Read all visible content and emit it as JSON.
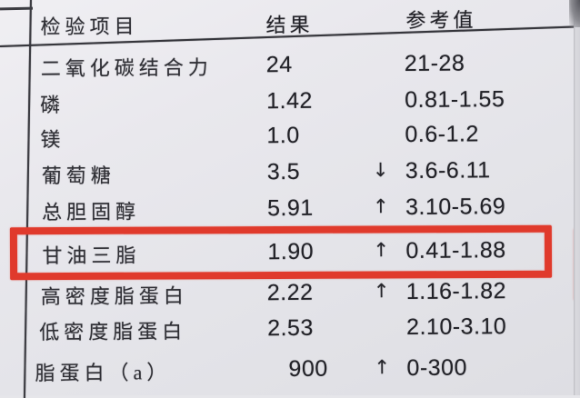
{
  "report": {
    "header": {
      "item": "检验项目",
      "result": "结果",
      "reference": "参考值"
    },
    "rows": [
      {
        "item": "二氧化碳结合力",
        "result": "24",
        "flag": "",
        "reference": "21-28",
        "highlighted": false
      },
      {
        "item": "磷",
        "result": "1.42",
        "flag": "",
        "reference": "0.81-1.55",
        "highlighted": false
      },
      {
        "item": "镁",
        "result": "1.0",
        "flag": "",
        "reference": "0.6-1.2",
        "highlighted": false
      },
      {
        "item": "葡萄糖",
        "result": "3.5",
        "flag": "↓",
        "reference": "3.6-6.11",
        "highlighted": false
      },
      {
        "item": "总胆固醇",
        "result": "5.91",
        "flag": "↑",
        "reference": "3.10-5.69",
        "highlighted": false
      },
      {
        "item": "甘油三脂",
        "result": "1.90",
        "flag": "↑",
        "reference": "0.41-1.88",
        "highlighted": true
      },
      {
        "item": "高密度脂蛋白",
        "result": "2.22",
        "flag": "↑",
        "reference": "1.16-1.82",
        "highlighted": false
      },
      {
        "item": "低密度脂蛋白",
        "result": "2.53",
        "flag": "",
        "reference": "2.10-3.10",
        "highlighted": false
      },
      {
        "item": "脂蛋白（a）",
        "result": "900",
        "flag": "↑",
        "reference": "0-300",
        "highlighted": false
      }
    ],
    "flags": {
      "up": "↑",
      "down": "↓"
    },
    "colors": {
      "highlight_box": "#e03a2c",
      "ink": "#2f2f35",
      "paper": "#e6e6ea"
    }
  }
}
